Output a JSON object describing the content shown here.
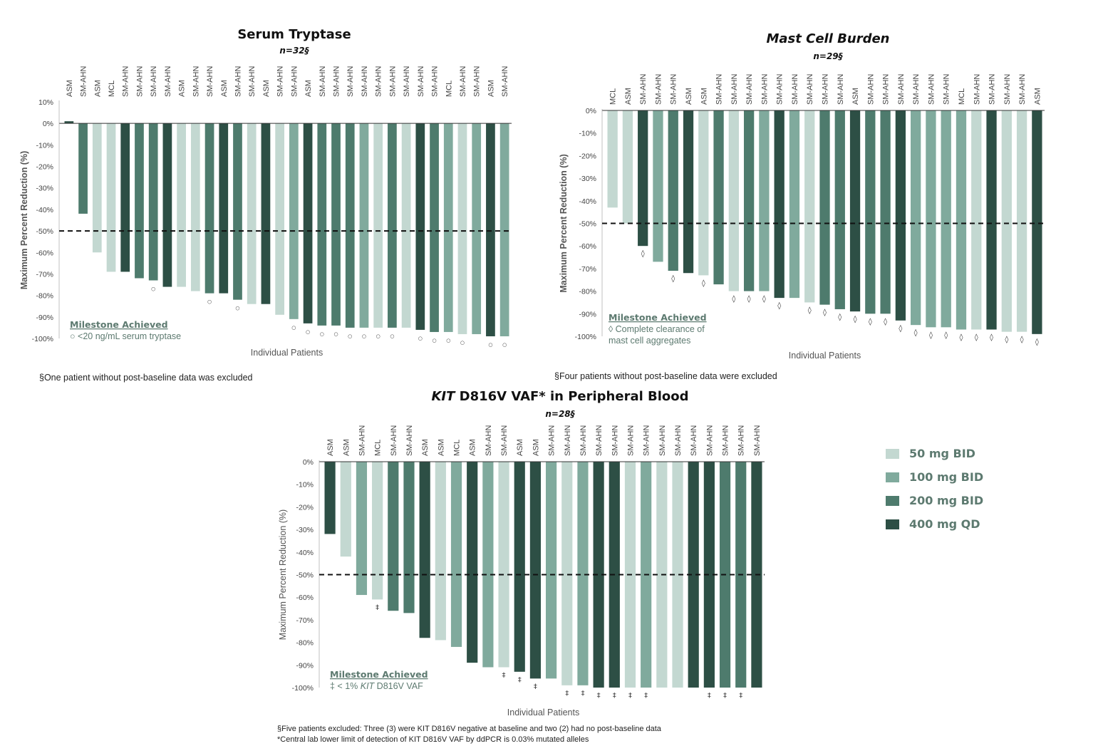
{
  "colors": {
    "50 mg BID": "#c3d8d1",
    "100 mg BID": "#80aa9d",
    "200 mg BID": "#4e7b6d",
    "400 mg QD": "#2d4f45"
  },
  "legend": {
    "items": [
      {
        "label": "50 mg BID",
        "color": "#c3d8d1"
      },
      {
        "label": "100 mg BID",
        "color": "#80aa9d"
      },
      {
        "label": "200 mg BID",
        "color": "#4e7b6d"
      },
      {
        "label": "400 mg QD",
        "color": "#2d4f45"
      }
    ]
  },
  "chart_data": [
    {
      "type": "bar",
      "id": "tryptase",
      "title": "Serum Tryptase",
      "title_italic": false,
      "subtitle": "n=32§",
      "xlabel": "Individual Patients",
      "ylabel": "Maximum Percent Reduction (%)",
      "ylim": [
        -100,
        10
      ],
      "yticks": [
        10,
        0,
        -10,
        -20,
        -30,
        -40,
        -50,
        -60,
        -70,
        -80,
        -90,
        -100
      ],
      "threshold": -50,
      "milestone_title": "Milestone Achieved",
      "milestone_lines": [
        "○ <20 ng/mL serum tryptase"
      ],
      "marker_symbol": "○",
      "footnotes": [
        "§One patient without post-baseline data was excluded"
      ],
      "categories": [
        "ASM",
        "SM-AHN",
        "ASM",
        "MCL",
        "SM-AHN",
        "SM-AHN",
        "SM-AHN",
        "SM-AHN",
        "ASM",
        "SM-AHN",
        "SM-AHN",
        "ASM",
        "SM-AHN",
        "SM-AHN",
        "ASM",
        "SM-AHN",
        "SM-AHN",
        "ASM",
        "SM-AHN",
        "SM-AHN",
        "SM-AHN",
        "SM-AHN",
        "SM-AHN",
        "SM-AHN",
        "SM-AHN",
        "SM-AHN",
        "SM-AHN",
        "MCL",
        "SM-AHN",
        "SM-AHN",
        "ASM",
        "SM-AHN"
      ],
      "values": [
        1,
        -42,
        -60,
        -69,
        -69,
        -72,
        -73,
        -76,
        -76,
        -78,
        -79,
        -79,
        -82,
        -84,
        -84,
        -89,
        -91,
        -93,
        -94,
        -94,
        -95,
        -95,
        -95,
        -95,
        -95,
        -96,
        -97,
        -97,
        -98,
        -98,
        -99,
        -99
      ],
      "doses": [
        "400 mg QD",
        "200 mg BID",
        "50 mg BID",
        "50 mg BID",
        "400 mg QD",
        "200 mg BID",
        "200 mg BID",
        "400 mg QD",
        "50 mg BID",
        "50 mg BID",
        "200 mg BID",
        "400 mg QD",
        "200 mg BID",
        "50 mg BID",
        "400 mg QD",
        "50 mg BID",
        "100 mg BID",
        "400 mg QD",
        "200 mg BID",
        "200 mg BID",
        "200 mg BID",
        "100 mg BID",
        "50 mg BID",
        "200 mg BID",
        "50 mg BID",
        "400 mg QD",
        "200 mg BID",
        "100 mg BID",
        "50 mg BID",
        "100 mg BID",
        "400 mg QD",
        "100 mg BID"
      ],
      "markers": [
        false,
        false,
        false,
        false,
        false,
        false,
        true,
        false,
        false,
        false,
        true,
        false,
        true,
        false,
        false,
        false,
        true,
        true,
        true,
        true,
        true,
        true,
        true,
        true,
        false,
        true,
        true,
        true,
        true,
        false,
        true,
        true
      ]
    },
    {
      "type": "bar",
      "id": "mastcell",
      "title": "Mast Cell Burden",
      "title_italic": true,
      "subtitle": "n=29§",
      "xlabel": "Individual Patients",
      "ylabel": "Maximum Percent Reduction (%)",
      "ylim": [
        -100,
        0
      ],
      "yticks": [
        0,
        -10,
        -20,
        -30,
        -40,
        -50,
        -60,
        -70,
        -80,
        -90,
        -100
      ],
      "threshold": -50,
      "milestone_title": "Milestone Achieved",
      "milestone_lines": [
        "◊ Complete clearance of",
        "mast cell aggregates"
      ],
      "marker_symbol": "◊",
      "footnotes": [
        "§Four patients without post-baseline data were excluded"
      ],
      "categories": [
        "MCL",
        "ASM",
        "SM-AHN",
        "SM-AHN",
        "SM-AHN",
        "ASM",
        "ASM",
        "SM-AHN",
        "SM-AHN",
        "SM-AHN",
        "SM-AHN",
        "SM-AHN",
        "SM-AHN",
        "SM-AHN",
        "SM-AHN",
        "SM-AHN",
        "ASM",
        "SM-AHN",
        "SM-AHN",
        "SM-AHN",
        "SM-AHN",
        "SM-AHN",
        "SM-AHN",
        "MCL",
        "SM-AHN",
        "SM-AHN",
        "SM-AHN",
        "SM-AHN",
        "ASM"
      ],
      "values": [
        -43,
        -50,
        -60,
        -67,
        -71,
        -72,
        -73,
        -77,
        -80,
        -80,
        -80,
        -83,
        -83,
        -85,
        -86,
        -88,
        -89,
        -90,
        -90,
        -93,
        -95,
        -96,
        -96,
        -97,
        -97,
        -97,
        -98,
        -98,
        -99
      ],
      "doses": [
        "50 mg BID",
        "50 mg BID",
        "400 mg QD",
        "100 mg BID",
        "200 mg BID",
        "400 mg QD",
        "50 mg BID",
        "200 mg BID",
        "50 mg BID",
        "200 mg BID",
        "100 mg BID",
        "400 mg QD",
        "100 mg BID",
        "50 mg BID",
        "200 mg BID",
        "200 mg BID",
        "400 mg QD",
        "200 mg BID",
        "200 mg BID",
        "400 mg QD",
        "100 mg BID",
        "100 mg BID",
        "100 mg BID",
        "100 mg BID",
        "50 mg BID",
        "400 mg QD",
        "50 mg BID",
        "50 mg BID",
        "400 mg QD"
      ],
      "markers": [
        false,
        false,
        true,
        false,
        true,
        false,
        true,
        false,
        true,
        true,
        true,
        true,
        false,
        true,
        true,
        true,
        true,
        true,
        true,
        true,
        true,
        true,
        true,
        true,
        true,
        true,
        true,
        true,
        true
      ]
    },
    {
      "type": "bar",
      "id": "vaf",
      "title": "KIT D816V VAF* in Peripheral Blood",
      "title_italic_part": "KIT",
      "title_rest": " D816V VAF* in Peripheral Blood",
      "subtitle": "n=28§",
      "xlabel": "Individual Patients",
      "ylabel": "Maximum Percent Reduction (%)",
      "ylim": [
        -100,
        0
      ],
      "yticks": [
        0,
        -10,
        -20,
        -30,
        -40,
        -50,
        -60,
        -70,
        -80,
        -90,
        -100
      ],
      "threshold": -50,
      "milestone_title": "Milestone Achieved",
      "milestone_lines": [
        "‡ < 1% KIT D816V VAF"
      ],
      "marker_symbol": "‡",
      "footnotes": [
        "§Five patients excluded: Three (3) were KIT D816V negative at baseline and two (2) had no post-baseline data",
        "*Central lab lower limit of detection of KIT D816V VAF by ddPCR is 0.03% mutated alleles"
      ],
      "categories": [
        "ASM",
        "ASM",
        "SM-AHN",
        "MCL",
        "SM-AHN",
        "SM-AHN",
        "ASM",
        "ASM",
        "MCL",
        "ASM",
        "SM-AHN",
        "SM-AHN",
        "ASM",
        "ASM",
        "SM-AHN",
        "SM-AHN",
        "SM-AHN",
        "SM-AHN",
        "SM-AHN",
        "SM-AHN",
        "SM-AHN",
        "SM-AHN",
        "SM-AHN",
        "SM-AHN",
        "SM-AHN",
        "SM-AHN",
        "SM-AHN",
        "SM-AHN"
      ],
      "values": [
        -32,
        -42,
        -59,
        -61,
        -66,
        -67,
        -78,
        -79,
        -82,
        -89,
        -91,
        -91,
        -93,
        -96,
        -96,
        -99,
        -99,
        -100,
        -100,
        -100,
        -100,
        -100,
        -100,
        -100,
        -100,
        -100,
        -100,
        -100
      ],
      "doses": [
        "400 mg QD",
        "50 mg BID",
        "100 mg BID",
        "50 mg BID",
        "200 mg BID",
        "200 mg BID",
        "400 mg QD",
        "50 mg BID",
        "100 mg BID",
        "400 mg QD",
        "100 mg BID",
        "50 mg BID",
        "400 mg QD",
        "400 mg QD",
        "100 mg BID",
        "50 mg BID",
        "100 mg BID",
        "400 mg QD",
        "400 mg QD",
        "50 mg BID",
        "100 mg BID",
        "50 mg BID",
        "50 mg BID",
        "400 mg QD",
        "400 mg QD",
        "200 mg BID",
        "200 mg BID",
        "400 mg QD"
      ],
      "markers": [
        false,
        false,
        false,
        true,
        false,
        false,
        false,
        false,
        false,
        false,
        false,
        true,
        true,
        true,
        false,
        true,
        true,
        true,
        true,
        true,
        true,
        false,
        false,
        false,
        true,
        true,
        true,
        false
      ]
    }
  ]
}
